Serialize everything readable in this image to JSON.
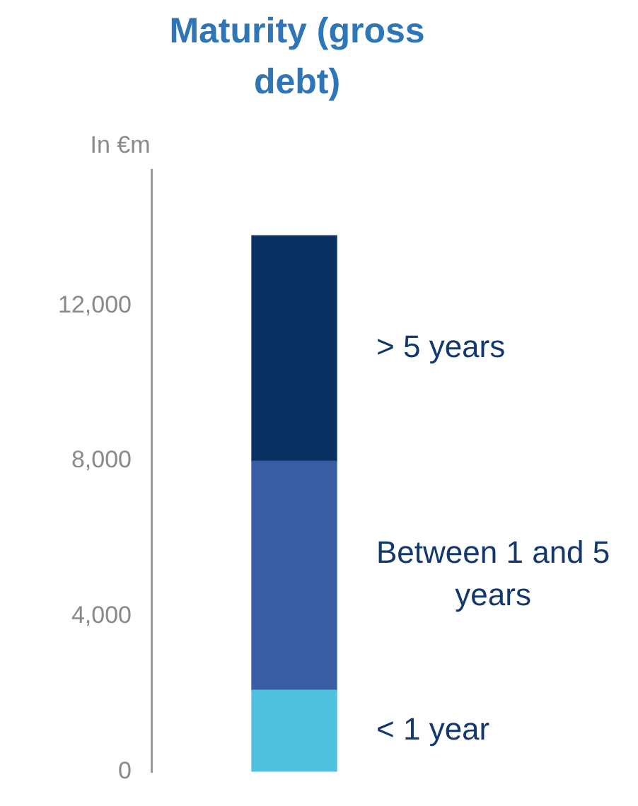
{
  "chart_data": {
    "type": "bar",
    "title": "Maturity (gross debt)",
    "ylabel": "In €m",
    "stacked": true,
    "categories": [
      null
    ],
    "series": [
      {
        "name": "< 1 year",
        "color": "#4fc1df",
        "values": [
          2100
        ]
      },
      {
        "name": "Between 1 and 5 years",
        "color": "#3a5ca4",
        "values": [
          5900
        ]
      },
      {
        "name": "> 5 years",
        "color": "#0a2f61",
        "values": [
          5800
        ]
      }
    ],
    "ylim": [
      0,
      15500
    ],
    "yticks": [
      0,
      {
        "value": 4000,
        "label": "4,000"
      },
      {
        "value": 8000,
        "label": "8,000"
      },
      {
        "value": 12000,
        "label": "12,000"
      }
    ],
    "grid": false,
    "legend": false,
    "tick_labels": "y"
  }
}
